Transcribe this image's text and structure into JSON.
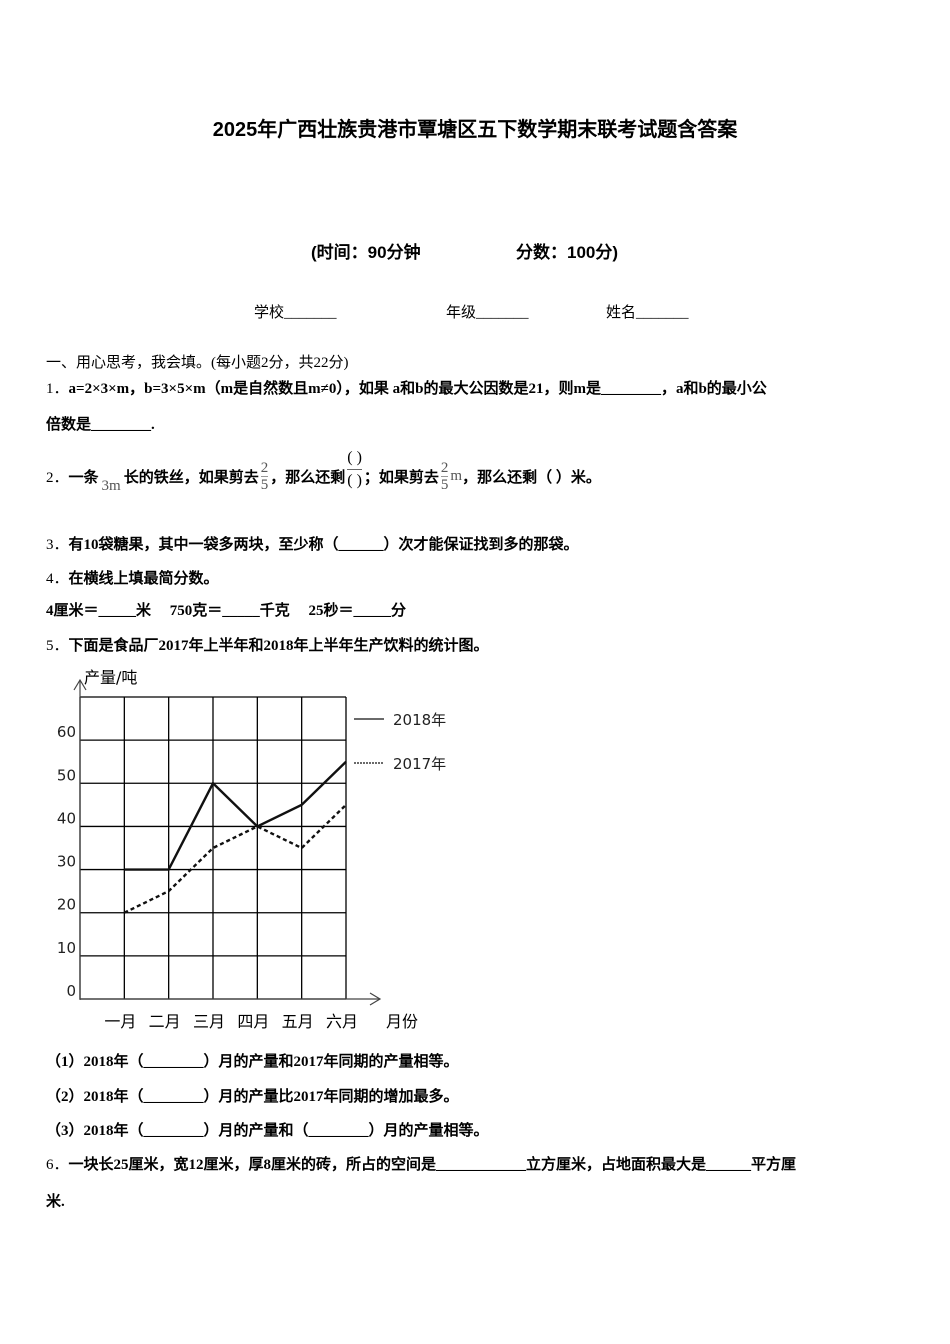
{
  "title": "2025年广西壮族贵港市覃塘区五下数学期末联考试题含答案",
  "subtitle": {
    "time": "(时间：90分钟",
    "score": "分数：100分)"
  },
  "info": {
    "school": "学校_______",
    "grade": "年级_______",
    "name": "姓名_______"
  },
  "section1": "一、用心思考，我会填。(每小题2分，共22分)",
  "q1": {
    "num": "1．",
    "line1": "a=2×3×m，b=3×5×m（m是自然数且m≠0），如果 a和b的最大公因数是21，则m是________，a和b的最小公",
    "line2": "倍数是________."
  },
  "q2": {
    "num": "2．",
    "p1": "一条",
    "len": "3m",
    "p2": "长的铁丝，如果剪去",
    "fn": "2",
    "fd": "5",
    "p3": "，那么还剩",
    "bn": "(     )",
    "bd": "(     )",
    "p4": "；如果剪去",
    "unit": "m",
    "p5": "，那么还剩（   ）米。"
  },
  "q3": {
    "num": "3．",
    "text": "有10袋糖果，其中一袋多两块，至少称（______）次才能保证找到多的那袋。"
  },
  "q4": {
    "num": "4．",
    "text": "在横线上填最简分数。",
    "line2": "4厘米＝_____米     750克＝_____千克     25秒＝_____分"
  },
  "q5": {
    "num": "5．",
    "text": "下面是食品厂2017年上半年和2018年上半年生产饮料的统计图。",
    "sub1": "（1）2018年（________）月的产量和2017年同期的产量相等。",
    "sub2": "（2）2018年（________）月的产量比2017年同期的增加最多。",
    "sub3": "（3）2018年（________）月的产量和（________）月的产量相等。"
  },
  "q6": {
    "num": "6．",
    "line1": "一块长25厘米，宽12厘米，厚8厘米的砖，所占的空间是____________立方厘米，占地面积最大是______平方厘",
    "line2": "米."
  },
  "chart_data": {
    "type": "line",
    "ylabel": "产量/吨",
    "xlabel": "月份",
    "categories": [
      "一月",
      "二月",
      "三月",
      "四月",
      "五月",
      "六月"
    ],
    "yticks": [
      "0",
      "10",
      "20",
      "30",
      "40",
      "50",
      "60"
    ],
    "ylim": [
      0,
      70
    ],
    "grid": true,
    "legend": "right",
    "series": [
      {
        "name": "2018年",
        "style": "solid",
        "values": [
          30,
          30,
          50,
          40,
          45,
          55
        ]
      },
      {
        "name": "2017年",
        "style": "dashed",
        "values": [
          20,
          25,
          35,
          40,
          35,
          45
        ]
      }
    ]
  }
}
